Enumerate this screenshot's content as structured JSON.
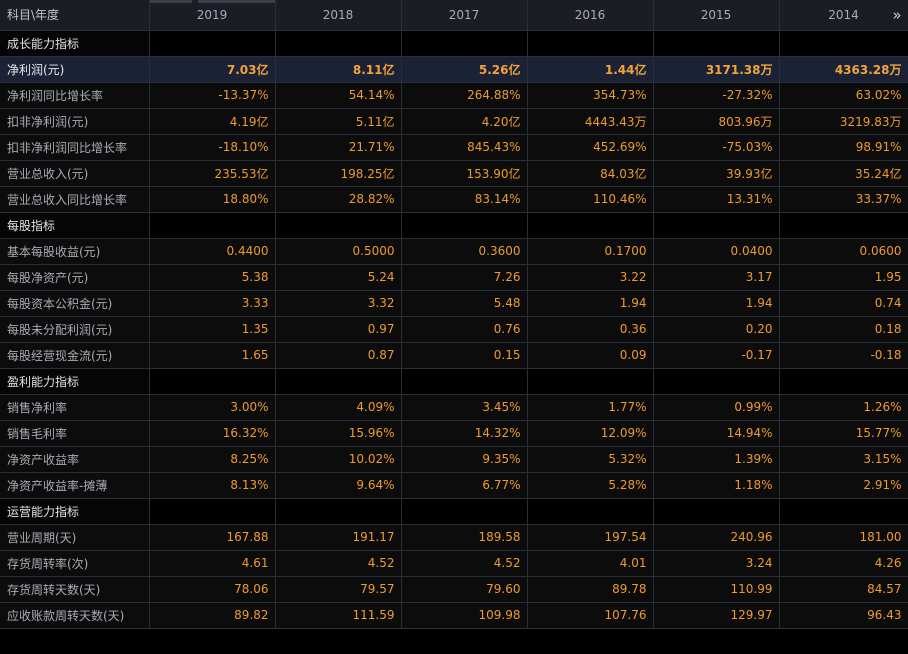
{
  "header": {
    "label": "科目\\年度",
    "years": [
      "2019",
      "2018",
      "2017",
      "2016",
      "2015",
      "2014"
    ],
    "more_icon": "»"
  },
  "rows": [
    {
      "type": "section",
      "label": "成长能力指标"
    },
    {
      "type": "highlight",
      "label": "净利润(元)",
      "values": [
        "7.03亿",
        "8.11亿",
        "5.26亿",
        "1.44亿",
        "3171.38万",
        "4363.28万"
      ]
    },
    {
      "type": "data",
      "label": "净利润同比增长率",
      "values": [
        "-13.37%",
        "54.14%",
        "264.88%",
        "354.73%",
        "-27.32%",
        "63.02%"
      ]
    },
    {
      "type": "data",
      "label": "扣非净利润(元)",
      "values": [
        "4.19亿",
        "5.11亿",
        "4.20亿",
        "4443.43万",
        "803.96万",
        "3219.83万"
      ]
    },
    {
      "type": "data",
      "label": "扣非净利润同比增长率",
      "values": [
        "-18.10%",
        "21.71%",
        "845.43%",
        "452.69%",
        "-75.03%",
        "98.91%"
      ]
    },
    {
      "type": "data",
      "label": "营业总收入(元)",
      "values": [
        "235.53亿",
        "198.25亿",
        "153.90亿",
        "84.03亿",
        "39.93亿",
        "35.24亿"
      ]
    },
    {
      "type": "data",
      "label": "营业总收入同比增长率",
      "values": [
        "18.80%",
        "28.82%",
        "83.14%",
        "110.46%",
        "13.31%",
        "33.37%"
      ]
    },
    {
      "type": "section",
      "label": "每股指标"
    },
    {
      "type": "data",
      "label": "基本每股收益(元)",
      "values": [
        "0.4400",
        "0.5000",
        "0.3600",
        "0.1700",
        "0.0400",
        "0.0600"
      ]
    },
    {
      "type": "data",
      "label": "每股净资产(元)",
      "values": [
        "5.38",
        "5.24",
        "7.26",
        "3.22",
        "3.17",
        "1.95"
      ]
    },
    {
      "type": "data",
      "label": "每股资本公积金(元)",
      "values": [
        "3.33",
        "3.32",
        "5.48",
        "1.94",
        "1.94",
        "0.74"
      ]
    },
    {
      "type": "data",
      "label": "每股未分配利润(元)",
      "values": [
        "1.35",
        "0.97",
        "0.76",
        "0.36",
        "0.20",
        "0.18"
      ]
    },
    {
      "type": "data",
      "label": "每股经营现金流(元)",
      "values": [
        "1.65",
        "0.87",
        "0.15",
        "0.09",
        "-0.17",
        "-0.18"
      ]
    },
    {
      "type": "section",
      "label": "盈利能力指标"
    },
    {
      "type": "data",
      "label": "销售净利率",
      "values": [
        "3.00%",
        "4.09%",
        "3.45%",
        "1.77%",
        "0.99%",
        "1.26%"
      ]
    },
    {
      "type": "data",
      "label": "销售毛利率",
      "values": [
        "16.32%",
        "15.96%",
        "14.32%",
        "12.09%",
        "14.94%",
        "15.77%"
      ]
    },
    {
      "type": "data",
      "label": "净资产收益率",
      "values": [
        "8.25%",
        "10.02%",
        "9.35%",
        "5.32%",
        "1.39%",
        "3.15%"
      ]
    },
    {
      "type": "data",
      "label": "净资产收益率-摊薄",
      "values": [
        "8.13%",
        "9.64%",
        "6.77%",
        "5.28%",
        "1.18%",
        "2.91%"
      ]
    },
    {
      "type": "section",
      "label": "运营能力指标"
    },
    {
      "type": "data",
      "label": "营业周期(天)",
      "values": [
        "167.88",
        "191.17",
        "189.58",
        "197.54",
        "240.96",
        "181.00"
      ]
    },
    {
      "type": "data",
      "label": "存货周转率(次)",
      "values": [
        "4.61",
        "4.52",
        "4.52",
        "4.01",
        "3.24",
        "4.26"
      ]
    },
    {
      "type": "data",
      "label": "存货周转天数(天)",
      "values": [
        "78.06",
        "79.57",
        "79.60",
        "89.78",
        "110.99",
        "84.57"
      ]
    },
    {
      "type": "data",
      "label": "应收账款周转天数(天)",
      "values": [
        "89.82",
        "111.59",
        "109.98",
        "107.76",
        "129.97",
        "96.43"
      ]
    }
  ]
}
